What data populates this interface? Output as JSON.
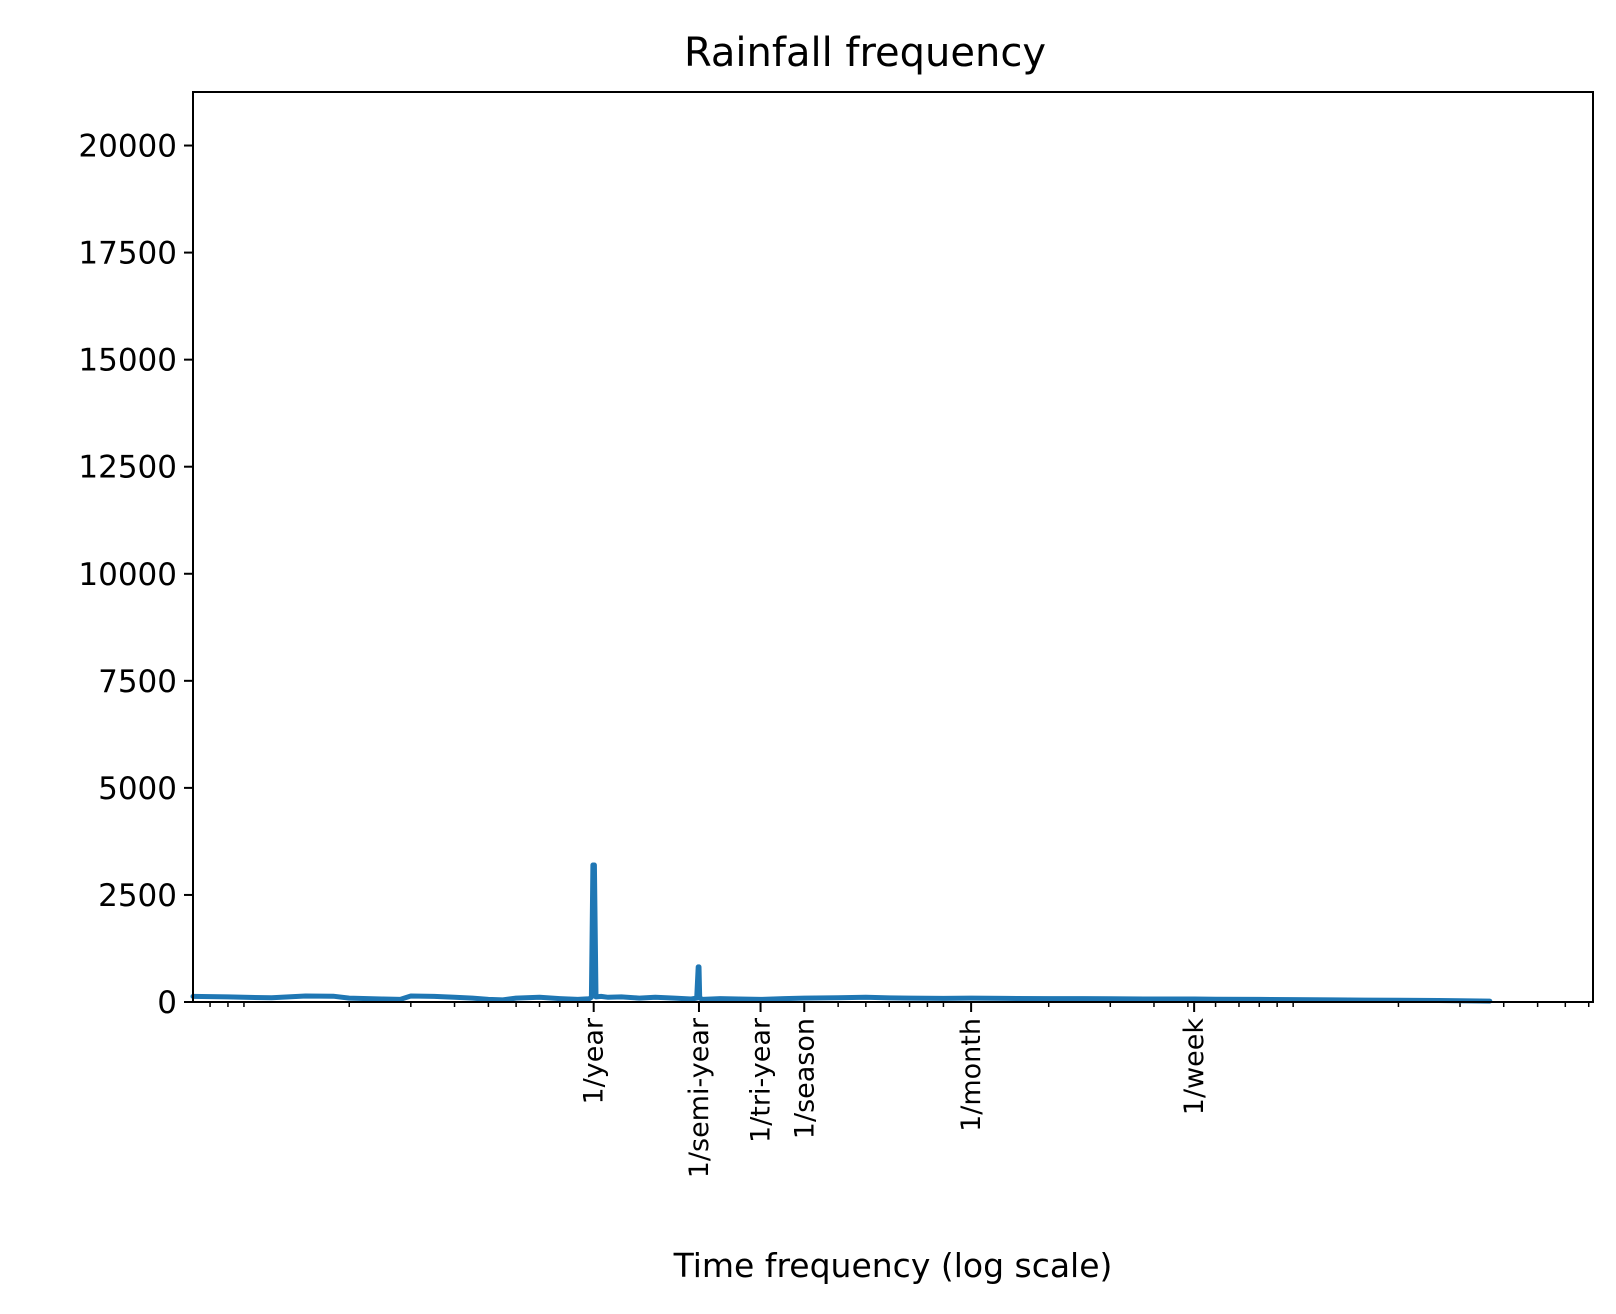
{
  "chart_data": {
    "type": "line",
    "title": "Rainfall frequency",
    "xlabel": "Time frequency (log scale)",
    "ylabel": "",
    "x_scale": "log",
    "x_unit": "cycles per year",
    "xlim": [
      0.0715,
      720
    ],
    "ylim": [
      0,
      21250
    ],
    "yticks": [
      0,
      2500,
      5000,
      7500,
      10000,
      12500,
      15000,
      17500,
      20000
    ],
    "xticks": [
      {
        "label": "1/year",
        "value": 1
      },
      {
        "label": "1/semi-year",
        "value": 2
      },
      {
        "label": "1/tri-year",
        "value": 3
      },
      {
        "label": "1/season",
        "value": 4
      },
      {
        "label": "1/month",
        "value": 12
      },
      {
        "label": "1/week",
        "value": 52.1
      }
    ],
    "line_color": "#1f77b4",
    "series": [
      {
        "x": [
          0.0715,
          0.09,
          0.1,
          0.12,
          0.15,
          0.18,
          0.2,
          0.25,
          0.28,
          0.3,
          0.35,
          0.4,
          0.45,
          0.5,
          0.55,
          0.6,
          0.7,
          0.8,
          0.9,
          0.97,
          0.985,
          0.995,
          1.0,
          1.005,
          1.015,
          1.05,
          1.1,
          1.2,
          1.35,
          1.5,
          1.7,
          1.9,
          1.97,
          1.99,
          2.0,
          2.01,
          2.05,
          2.3,
          2.6,
          3.0,
          3.5,
          4.0,
          5.0,
          6.0,
          7.0,
          8.0,
          10.0,
          12.0,
          15.0,
          20.0,
          25.0,
          30.0,
          40.0,
          52.1,
          60.0,
          80.0,
          100.0,
          130.0,
          160.0,
          200.0,
          260.0,
          300.0,
          365.0
        ],
        "y": [
          130,
          120,
          110,
          100,
          140,
          135,
          90,
          70,
          60,
          140,
          130,
          110,
          90,
          60,
          50,
          90,
          110,
          80,
          60,
          75,
          110,
          3200,
          3200,
          3200,
          120,
          130,
          110,
          120,
          90,
          110,
          90,
          70,
          90,
          820,
          820,
          90,
          60,
          80,
          70,
          60,
          80,
          90,
          100,
          110,
          95,
          90,
          85,
          90,
          85,
          80,
          80,
          75,
          70,
          70,
          65,
          60,
          55,
          50,
          45,
          40,
          35,
          30,
          20
        ]
      }
    ]
  }
}
